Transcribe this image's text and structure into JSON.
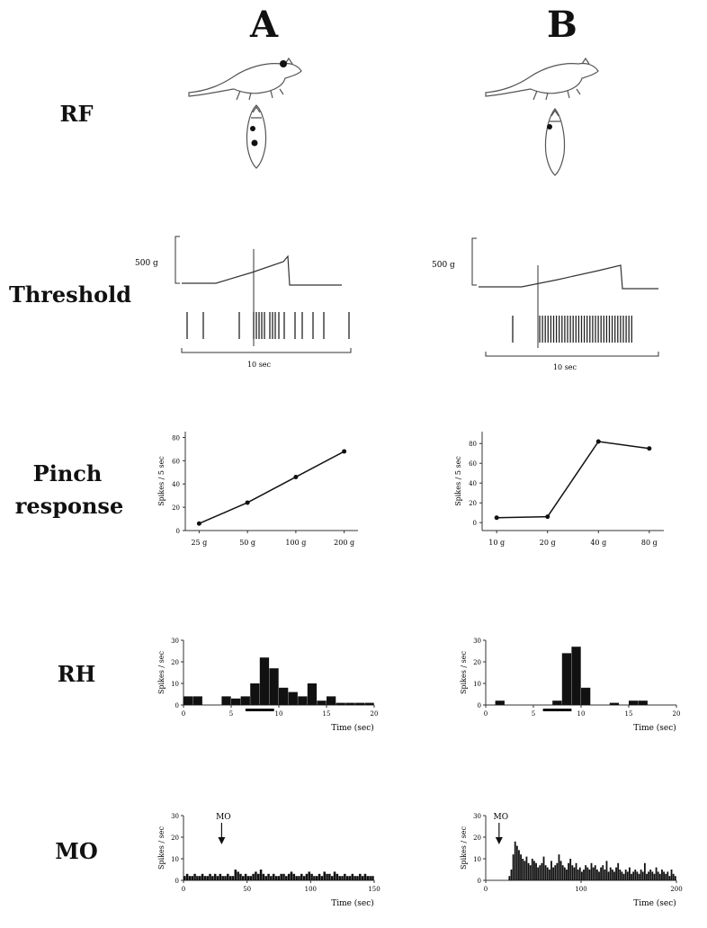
{
  "columns": [
    "A",
    "B"
  ],
  "row_labels": {
    "rf": "RF",
    "threshold": "Threshold",
    "pinch": [
      "Pinch",
      "response"
    ],
    "rh": "RH",
    "mo": "MO"
  },
  "threshold": {
    "force_label": "500 g",
    "time_label": "10 sec"
  },
  "chart_data": [
    {
      "panel": "A-pinch",
      "type": "line",
      "ylabel": "Spikes / 5 sec",
      "categories": [
        "25 g",
        "50 g",
        "100 g",
        "200 g"
      ],
      "values": [
        6,
        24,
        46,
        68
      ],
      "yticks": [
        "0",
        "20",
        "40",
        "60",
        "80"
      ],
      "ylim": [
        0,
        85
      ]
    },
    {
      "panel": "B-pinch",
      "type": "line",
      "ylabel": "Spikes / 5 sec",
      "categories": [
        "10 g",
        "20 g",
        "40 g",
        "80 g"
      ],
      "values": [
        5,
        6,
        82,
        75
      ],
      "yticks": [
        "0",
        "20",
        "40",
        "60",
        "80"
      ],
      "ylim": [
        -8,
        92
      ]
    },
    {
      "panel": "A-RH",
      "type": "bar",
      "ylabel": "Spikes / sec",
      "xlabel": "Time (sec)",
      "xticks": [
        "0",
        "5",
        "10",
        "15",
        "20"
      ],
      "xlim": [
        0,
        20
      ],
      "yticks": [
        "0",
        "10",
        "20",
        "30"
      ],
      "ylim": [
        0,
        30
      ],
      "bin_width": 1,
      "x": [
        0,
        1,
        2,
        3,
        4,
        5,
        6,
        7,
        8,
        9,
        10,
        11,
        12,
        13,
        14,
        15,
        16,
        17,
        18,
        19
      ],
      "values": [
        4,
        4,
        0,
        0,
        4,
        3,
        4,
        10,
        22,
        17,
        8,
        6,
        4,
        10,
        2,
        4,
        1,
        1,
        1,
        1
      ],
      "stimulus_bar": [
        6.5,
        9.5
      ]
    },
    {
      "panel": "B-RH",
      "type": "bar",
      "ylabel": "Spikes / sec",
      "xlabel": "Time (sec)",
      "xticks": [
        "0",
        "5",
        "10",
        "15",
        "20"
      ],
      "xlim": [
        0,
        20
      ],
      "yticks": [
        "0",
        "10",
        "20",
        "30"
      ],
      "ylim": [
        0,
        30
      ],
      "bin_width": 1,
      "x": [
        0,
        1,
        2,
        3,
        4,
        5,
        6,
        7,
        8,
        9,
        10,
        11,
        12,
        13,
        14,
        15,
        16,
        17,
        18,
        19
      ],
      "values": [
        0,
        2,
        0,
        0,
        0,
        0,
        0,
        2,
        24,
        27,
        8,
        0,
        0,
        1,
        0,
        2,
        2,
        0,
        0,
        0
      ],
      "stimulus_bar": [
        6.0,
        9.0
      ]
    },
    {
      "panel": "A-MO",
      "type": "bar",
      "ylabel": "Spikes / sec",
      "xlabel": "Time (sec)",
      "xticks": [
        "0",
        "50",
        "100",
        "150"
      ],
      "xlim": [
        0,
        150
      ],
      "yticks": [
        "0",
        "10",
        "20",
        "30"
      ],
      "ylim": [
        0,
        30
      ],
      "bin_width": 2,
      "x": [
        0,
        2,
        4,
        6,
        8,
        10,
        12,
        14,
        16,
        18,
        20,
        22,
        24,
        26,
        28,
        30,
        32,
        34,
        36,
        38,
        40,
        42,
        44,
        46,
        48,
        50,
        52,
        54,
        56,
        58,
        60,
        62,
        64,
        66,
        68,
        70,
        72,
        74,
        76,
        78,
        80,
        82,
        84,
        86,
        88,
        90,
        92,
        94,
        96,
        98,
        100,
        102,
        104,
        106,
        108,
        110,
        112,
        114,
        116,
        118,
        120,
        122,
        124,
        126,
        128,
        130,
        132,
        134,
        136,
        138,
        140,
        142,
        144,
        146,
        148
      ],
      "values": [
        2,
        3,
        2,
        2,
        3,
        2,
        2,
        3,
        2,
        2,
        3,
        2,
        3,
        2,
        3,
        2,
        2,
        3,
        2,
        2,
        5,
        4,
        3,
        2,
        3,
        2,
        2,
        3,
        4,
        3,
        5,
        3,
        2,
        3,
        2,
        3,
        2,
        2,
        3,
        3,
        2,
        3,
        4,
        3,
        2,
        2,
        3,
        2,
        3,
        4,
        3,
        2,
        2,
        3,
        2,
        4,
        3,
        3,
        2,
        4,
        3,
        2,
        2,
        3,
        2,
        2,
        3,
        2,
        2,
        3,
        2,
        3,
        2,
        2,
        2
      ],
      "arrow_label": "MO",
      "arrow_at": 30
    },
    {
      "panel": "B-MO",
      "type": "bar",
      "ylabel": "Spikes / sec",
      "xlabel": "Time (sec)",
      "xticks": [
        "0",
        "100",
        "200"
      ],
      "xlim": [
        0,
        200
      ],
      "yticks": [
        "0",
        "10",
        "20",
        "30"
      ],
      "ylim": [
        0,
        30
      ],
      "bin_width": 2,
      "x": [
        0,
        2,
        4,
        6,
        8,
        10,
        12,
        14,
        16,
        18,
        20,
        22,
        24,
        26,
        28,
        30,
        32,
        34,
        36,
        38,
        40,
        42,
        44,
        46,
        48,
        50,
        52,
        54,
        56,
        58,
        60,
        62,
        64,
        66,
        68,
        70,
        72,
        74,
        76,
        78,
        80,
        82,
        84,
        86,
        88,
        90,
        92,
        94,
        96,
        98,
        100,
        102,
        104,
        106,
        108,
        110,
        112,
        114,
        116,
        118,
        120,
        122,
        124,
        126,
        128,
        130,
        132,
        134,
        136,
        138,
        140,
        142,
        144,
        146,
        148,
        150,
        152,
        154,
        156,
        158,
        160,
        162,
        164,
        166,
        168,
        170,
        172,
        174,
        176,
        178,
        180,
        182,
        184,
        186,
        188,
        190,
        192,
        194,
        196,
        198
      ],
      "values": [
        0,
        0,
        0,
        0,
        0,
        0,
        0,
        0,
        0,
        0,
        0,
        0,
        2,
        5,
        12,
        18,
        16,
        14,
        12,
        10,
        9,
        11,
        8,
        7,
        10,
        9,
        8,
        6,
        7,
        8,
        11,
        7,
        6,
        5,
        9,
        6,
        7,
        8,
        12,
        9,
        7,
        6,
        5,
        8,
        10,
        7,
        6,
        8,
        5,
        6,
        4,
        5,
        7,
        6,
        5,
        8,
        6,
        7,
        5,
        4,
        6,
        7,
        5,
        9,
        4,
        6,
        5,
        4,
        6,
        8,
        5,
        4,
        3,
        5,
        4,
        6,
        3,
        4,
        5,
        4,
        3,
        5,
        4,
        8,
        3,
        4,
        5,
        4,
        3,
        6,
        4,
        3,
        5,
        4,
        3,
        4,
        2,
        5,
        3,
        2
      ],
      "arrow_label": "MO",
      "arrow_at": 14
    }
  ]
}
